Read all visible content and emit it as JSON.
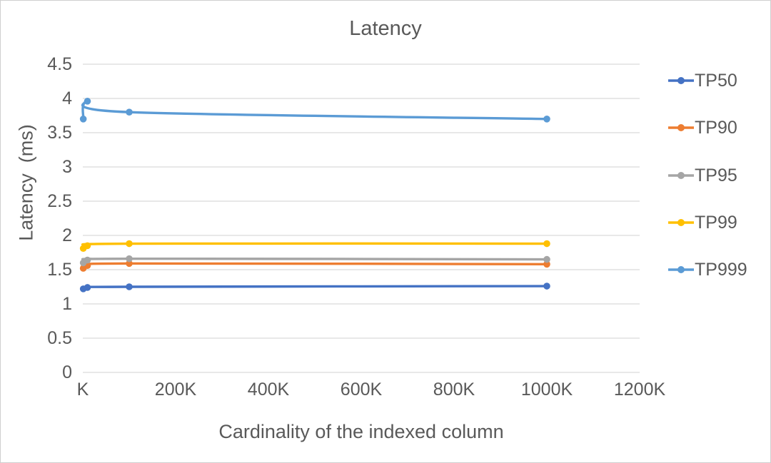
{
  "window": {
    "background": "#ffffff",
    "border_color": "#cfcfcf"
  },
  "chart_data": {
    "type": "line",
    "title": "Latency",
    "xlabel": "Cardinality of the indexed column",
    "ylabel": "Latency  (ms)",
    "x_unit": "K",
    "x": [
      1,
      10,
      100,
      1000
    ],
    "series": [
      {
        "name": "TP50",
        "color": "#4472C4",
        "values": [
          1.22,
          1.24,
          1.25,
          1.26
        ]
      },
      {
        "name": "TP90",
        "color": "#ED7D31",
        "values": [
          1.52,
          1.56,
          1.59,
          1.58
        ]
      },
      {
        "name": "TP95",
        "color": "#A5A5A5",
        "values": [
          1.6,
          1.64,
          1.66,
          1.65
        ]
      },
      {
        "name": "TP99",
        "color": "#FFC000",
        "values": [
          1.81,
          1.85,
          1.88,
          1.88
        ]
      },
      {
        "name": "TP999",
        "color": "#5B9BD5",
        "values": [
          3.7,
          3.96,
          3.8,
          3.7
        ]
      }
    ],
    "xlim": [
      0,
      1200
    ],
    "ylim": [
      0,
      4.5
    ],
    "x_ticks": [
      {
        "value": 0,
        "label": "K"
      },
      {
        "value": 200,
        "label": "200K"
      },
      {
        "value": 400,
        "label": "400K"
      },
      {
        "value": 600,
        "label": "600K"
      },
      {
        "value": 800,
        "label": "800K"
      },
      {
        "value": 1000,
        "label": "1000K"
      },
      {
        "value": 1200,
        "label": "1200K"
      }
    ],
    "y_ticks": [
      {
        "value": 0,
        "label": "0"
      },
      {
        "value": 0.5,
        "label": "0.5"
      },
      {
        "value": 1,
        "label": "1"
      },
      {
        "value": 1.5,
        "label": "1.5"
      },
      {
        "value": 2,
        "label": "2"
      },
      {
        "value": 2.5,
        "label": "2.5"
      },
      {
        "value": 3,
        "label": "3"
      },
      {
        "value": 3.5,
        "label": "3.5"
      },
      {
        "value": 4,
        "label": "4"
      },
      {
        "value": 4.5,
        "label": "4.5"
      }
    ],
    "grid": "horizontal",
    "gridline_color": "#D9D9D9",
    "text_color": "#595959",
    "legend_position": "right",
    "line_style": "smooth",
    "markers": "circle"
  }
}
